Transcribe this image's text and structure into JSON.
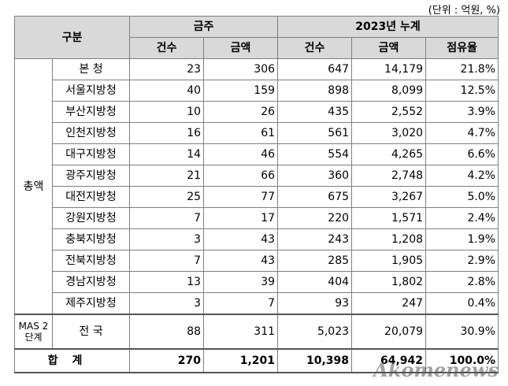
{
  "unit_note": "(단위 : 억원, %)",
  "header": {
    "category": "구분",
    "group_week": "금주",
    "group_cumulative": "2023년 누계",
    "col_count": "건수",
    "col_amount": "금액",
    "col_share": "점유율"
  },
  "group_label": "총액",
  "rows": [
    {
      "name": "본  청",
      "wk_count": "23",
      "wk_amount": "306",
      "cum_count": "647",
      "cum_amount": "14,179",
      "share": "21.8%"
    },
    {
      "name": "서울지방청",
      "wk_count": "40",
      "wk_amount": "159",
      "cum_count": "898",
      "cum_amount": "8,099",
      "share": "12.5%"
    },
    {
      "name": "부산지방청",
      "wk_count": "10",
      "wk_amount": "26",
      "cum_count": "435",
      "cum_amount": "2,552",
      "share": "3.9%"
    },
    {
      "name": "인천지방청",
      "wk_count": "16",
      "wk_amount": "61",
      "cum_count": "561",
      "cum_amount": "3,020",
      "share": "4.7%"
    },
    {
      "name": "대구지방청",
      "wk_count": "14",
      "wk_amount": "46",
      "cum_count": "554",
      "cum_amount": "4,265",
      "share": "6.6%"
    },
    {
      "name": "광주지방청",
      "wk_count": "21",
      "wk_amount": "66",
      "cum_count": "360",
      "cum_amount": "2,748",
      "share": "4.2%"
    },
    {
      "name": "대전지방청",
      "wk_count": "25",
      "wk_amount": "77",
      "cum_count": "675",
      "cum_amount": "3,267",
      "share": "5.0%"
    },
    {
      "name": "강원지방청",
      "wk_count": "7",
      "wk_amount": "17",
      "cum_count": "220",
      "cum_amount": "1,571",
      "share": "2.4%"
    },
    {
      "name": "충북지방청",
      "wk_count": "3",
      "wk_amount": "43",
      "cum_count": "243",
      "cum_amount": "1,208",
      "share": "1.9%"
    },
    {
      "name": "전북지방청",
      "wk_count": "7",
      "wk_amount": "43",
      "cum_count": "285",
      "cum_amount": "1,905",
      "share": "2.9%"
    },
    {
      "name": "경남지방청",
      "wk_count": "13",
      "wk_amount": "39",
      "cum_count": "404",
      "cum_amount": "1,802",
      "share": "2.8%"
    },
    {
      "name": "제주지방청",
      "wk_count": "3",
      "wk_amount": "7",
      "cum_count": "93",
      "cum_amount": "247",
      "share": "0.4%"
    }
  ],
  "mas": {
    "label": "MAS 2단계",
    "name": "전  국",
    "wk_count": "88",
    "wk_amount": "311",
    "cum_count": "5,023",
    "cum_amount": "20,079",
    "share": "30.9%"
  },
  "total": {
    "label": "합계",
    "wk_count": "270",
    "wk_amount": "1,201",
    "cum_count": "10,398",
    "cum_amount": "64,942",
    "share": "100.0%"
  },
  "watermark": "Akomenews"
}
